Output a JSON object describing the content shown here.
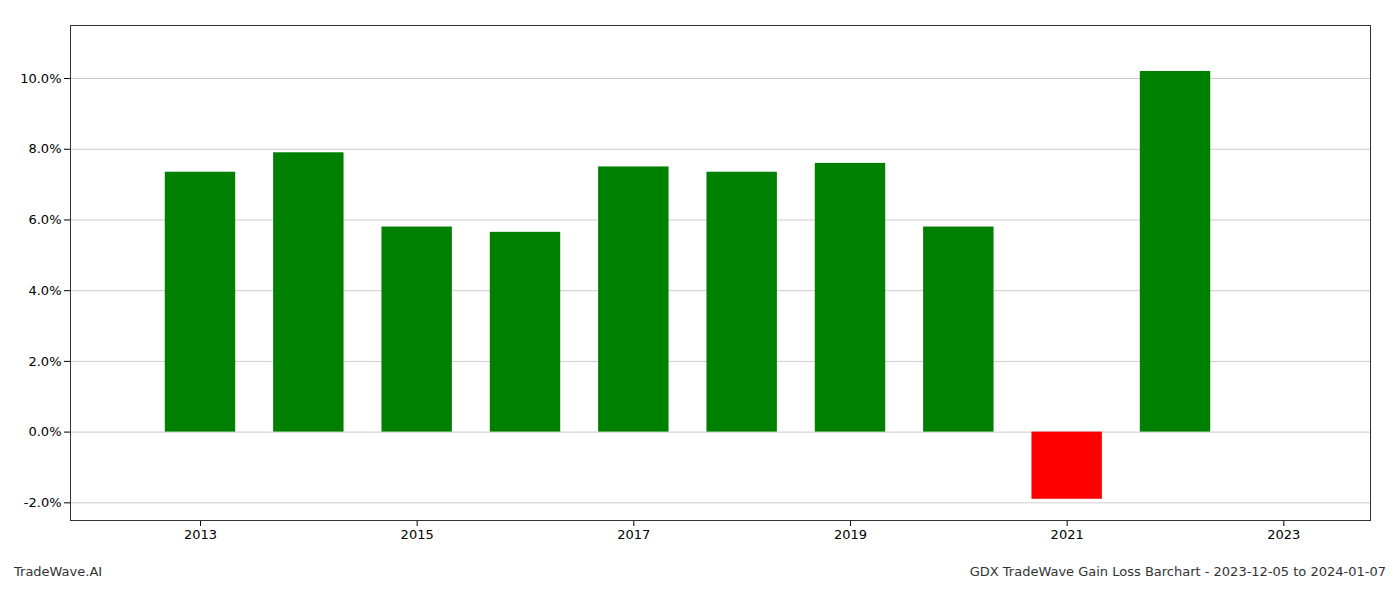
{
  "chart_data": {
    "type": "bar",
    "x": [
      2013,
      2014,
      2015,
      2016,
      2017,
      2018,
      2019,
      2020,
      2021,
      2022
    ],
    "values": [
      0.0735,
      0.079,
      0.058,
      0.0565,
      0.075,
      0.0735,
      0.076,
      0.058,
      -0.019,
      0.102
    ],
    "colors": [
      "#008000",
      "#008000",
      "#008000",
      "#008000",
      "#008000",
      "#008000",
      "#008000",
      "#008000",
      "#ff0000",
      "#008000"
    ],
    "xlim": [
      2011.8,
      2023.8
    ],
    "xticks": [
      2013,
      2015,
      2017,
      2019,
      2021,
      2023
    ],
    "ylim": [
      -0.025,
      0.115
    ],
    "yticks": [
      {
        "value": -0.02,
        "label": "-2.0%"
      },
      {
        "value": 0,
        "label": "0.0%"
      },
      {
        "value": 0.02,
        "label": "2.0%"
      },
      {
        "value": 0.04,
        "label": "4.0%"
      },
      {
        "value": 0.06,
        "label": "6.0%"
      },
      {
        "value": 0.08,
        "label": "8.0%"
      },
      {
        "value": 0.1,
        "label": "10.0%"
      }
    ],
    "grid": true,
    "annotations": [
      "TradeWave.AI",
      "GDX TradeWave Gain Loss Barchart - 2023-12-05 to 2024-01-07"
    ]
  }
}
